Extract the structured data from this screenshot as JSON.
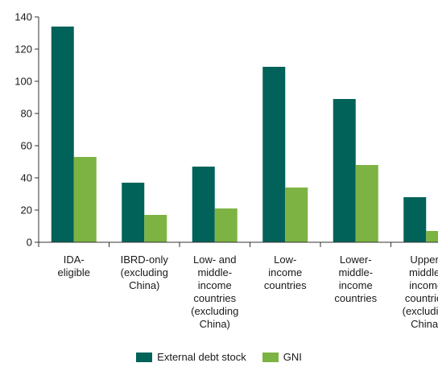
{
  "chart_data": {
    "type": "bar",
    "categories": [
      [
        "IDA-",
        "eligible"
      ],
      [
        "IBRD-only",
        "(excluding",
        "China)"
      ],
      [
        "Low- and",
        "middle-",
        "income",
        "countries",
        "(excluding",
        "China)"
      ],
      [
        "Low-",
        "income",
        "countries"
      ],
      [
        "Lower-",
        "middle-",
        "income",
        "countries"
      ],
      [
        "Upper-",
        "middle-",
        "income",
        "countries",
        "(excluding",
        "China)"
      ]
    ],
    "series": [
      {
        "name": "External debt stock",
        "color": "#006259",
        "values": [
          134,
          37,
          47,
          109,
          89,
          28
        ]
      },
      {
        "name": "GNI",
        "color": "#7db343",
        "values": [
          53,
          17,
          21,
          34,
          48,
          7
        ]
      }
    ],
    "ylim": [
      0,
      140
    ],
    "yticks": [
      0,
      20,
      40,
      60,
      80,
      100,
      120,
      140
    ],
    "grid": false,
    "legend_position": "bottom-center",
    "title": "",
    "xlabel": "",
    "ylabel": ""
  }
}
